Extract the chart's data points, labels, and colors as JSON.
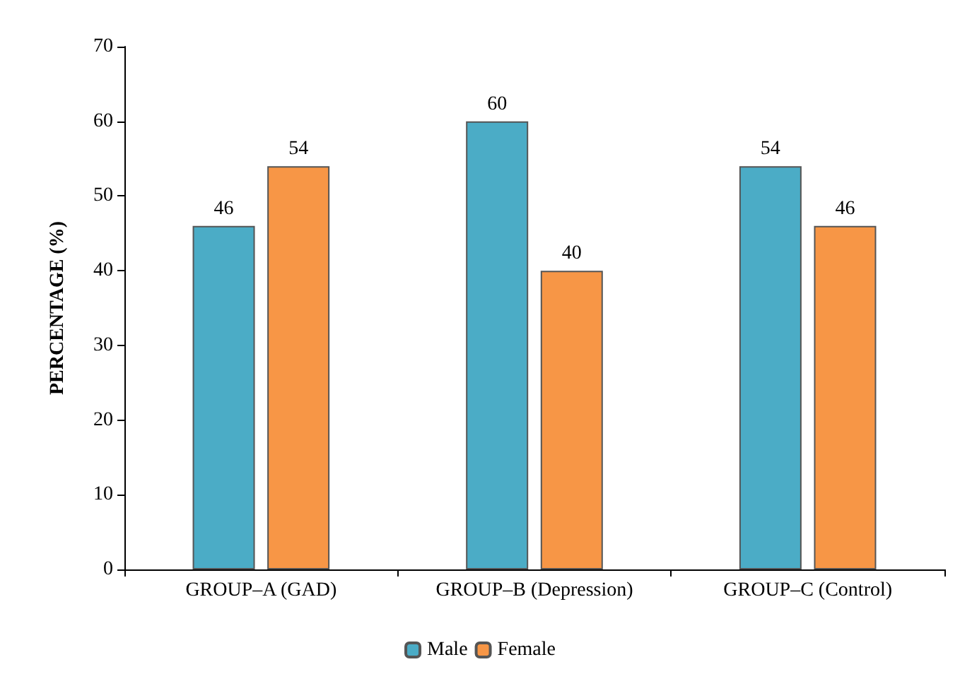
{
  "chart_data": {
    "type": "bar",
    "ylabel": "PERCENTAGE (%)",
    "categories": [
      "GROUP–A (GAD)",
      "GROUP–B (Depression)",
      "GROUP–C (Control)"
    ],
    "series": [
      {
        "name": "Male",
        "color": "#4bacc6",
        "values": [
          46,
          60,
          54
        ]
      },
      {
        "name": "Female",
        "color": "#f79646",
        "values": [
          54,
          40,
          46
        ]
      }
    ],
    "ylim": [
      0,
      70
    ],
    "yticks": [
      0,
      10,
      20,
      30,
      40,
      50,
      60,
      70
    ],
    "grid": false,
    "legend": "bottom",
    "data_labels": true
  }
}
